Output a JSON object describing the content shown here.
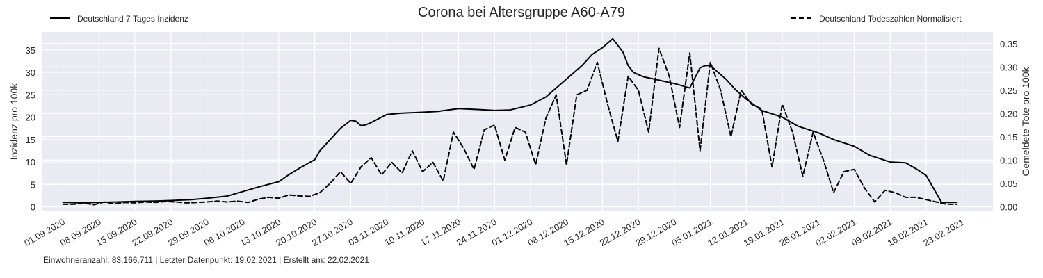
{
  "chart_data": {
    "type": "line",
    "title": "Corona bei Altersgruppe A60-A79",
    "ylabel": "Inzidenz pro 100k",
    "y2label": "Gemeldete Tote pro 100k",
    "xlabel": "",
    "footnote": "Einwohneranzahl: 83,166,711 | Letzter Datenpunkt: 19.02.2021 | Erstellt am: 22.02.2021",
    "x_ticks": [
      "01.09.2020",
      "08.09.2020",
      "15.09.2020",
      "22.09.2020",
      "29.09.2020",
      "06.10.2020",
      "13.10.2020",
      "20.10.2020",
      "27.10.2020",
      "03.11.2020",
      "10.11.2020",
      "17.11.2020",
      "24.11.2020",
      "01.12.2020",
      "08.12.2020",
      "15.12.2020",
      "22.12.2020",
      "29.12.2020",
      "05.01.2021",
      "12.01.2021",
      "19.01.2021",
      "26.01.2021",
      "02.02.2021",
      "09.02.2021",
      "16.02.2021",
      "23.02.2021"
    ],
    "y_ticks": [
      "0",
      "5",
      "10",
      "15",
      "20",
      "25",
      "30",
      "35"
    ],
    "y2_ticks": [
      "0.00",
      "0.05",
      "0.10",
      "0.15",
      "0.20",
      "0.25",
      "0.30",
      "0.35"
    ],
    "xlim": [
      "28.08.2020",
      "01.03.2021"
    ],
    "ylim": [
      -1,
      39
    ],
    "y2lim": [
      -0.01,
      0.375
    ],
    "grid": true,
    "background": "#eaeaf2",
    "line_color": "#000000",
    "legend": [
      {
        "label": "Deutschland 7 Tages Inzidenz",
        "style": "solid",
        "placement": "top-left"
      },
      {
        "label": "Deutschland Todeszahlen Normalisiert",
        "style": "dashed",
        "placement": "top-right"
      }
    ],
    "series": [
      {
        "name": "Deutschland 7 Tages Inzidenz",
        "axis": "left",
        "style": "solid",
        "x": [
          "01.09.2020",
          "05.09.2020",
          "08.09.2020",
          "12.09.2020",
          "15.09.2020",
          "19.09.2020",
          "22.09.2020",
          "26.09.2020",
          "29.09.2020",
          "03.10.2020",
          "06.10.2020",
          "09.10.2020",
          "13.10.2020",
          "15.10.2020",
          "17.10.2020",
          "20.10.2020",
          "21.10.2020",
          "23.10.2020",
          "25.10.2020",
          "27.10.2020",
          "28.10.2020",
          "29.10.2020",
          "30.10.2020",
          "31.10.2020",
          "03.11.2020",
          "06.11.2020",
          "10.11.2020",
          "13.11.2020",
          "17.11.2020",
          "21.11.2020",
          "24.11.2020",
          "27.11.2020",
          "01.12.2020",
          "04.12.2020",
          "08.12.2020",
          "11.12.2020",
          "13.12.2020",
          "15.12.2020",
          "17.12.2020",
          "19.12.2020",
          "20.12.2020",
          "21.12.2020",
          "22.12.2020",
          "23.12.2020",
          "25.12.2020",
          "27.12.2020",
          "29.12.2020",
          "01.01.2021",
          "03.01.2021",
          "04.01.2021",
          "05.01.2021",
          "06.01.2021",
          "08.01.2021",
          "10.01.2021",
          "12.01.2021",
          "15.01.2021",
          "19.01.2021",
          "22.01.2021",
          "26.01.2021",
          "29.01.2021",
          "02.02.2021",
          "05.02.2021",
          "09.02.2021",
          "12.02.2021",
          "14.02.2021",
          "16.02.2021",
          "19.02.2021",
          "22.02.2021"
        ],
        "values": [
          1.0,
          0.9,
          1.0,
          1.1,
          1.2,
          1.3,
          1.4,
          1.6,
          1.9,
          2.4,
          3.4,
          4.4,
          5.6,
          7.2,
          8.6,
          10.5,
          12.5,
          15.0,
          17.5,
          19.3,
          19.1,
          18.1,
          18.3,
          18.8,
          20.6,
          20.9,
          21.1,
          21.3,
          21.9,
          21.7,
          21.5,
          21.6,
          22.7,
          24.5,
          28.5,
          31.5,
          34.0,
          35.5,
          37.5,
          34.5,
          31.5,
          30.0,
          29.5,
          29.0,
          28.5,
          28.0,
          27.5,
          26.5,
          31.0,
          31.5,
          31.5,
          30.5,
          28.5,
          26.0,
          24.0,
          21.5,
          20.0,
          18.0,
          16.5,
          15.0,
          13.5,
          11.5,
          10.0,
          9.8,
          8.5,
          7.0,
          1.0,
          1.0
        ]
      },
      {
        "name": "Deutschland Todeszahlen Normalisiert",
        "axis": "right",
        "style": "dashed",
        "x": [
          "01.09.2020",
          "03.09.2020",
          "05.09.2020",
          "07.09.2020",
          "09.09.2020",
          "11.09.2020",
          "13.09.2020",
          "15.09.2020",
          "17.09.2020",
          "19.09.2020",
          "21.09.2020",
          "23.09.2020",
          "25.09.2020",
          "27.09.2020",
          "29.09.2020",
          "01.10.2020",
          "03.10.2020",
          "05.10.2020",
          "07.10.2020",
          "09.10.2020",
          "11.10.2020",
          "13.10.2020",
          "15.10.2020",
          "17.10.2020",
          "19.10.2020",
          "21.10.2020",
          "23.10.2020",
          "25.10.2020",
          "27.10.2020",
          "29.10.2020",
          "31.10.2020",
          "02.11.2020",
          "04.11.2020",
          "06.11.2020",
          "08.11.2020",
          "10.11.2020",
          "12.11.2020",
          "14.11.2020",
          "16.11.2020",
          "18.11.2020",
          "20.11.2020",
          "22.11.2020",
          "24.11.2020",
          "26.11.2020",
          "28.11.2020",
          "30.11.2020",
          "02.12.2020",
          "04.12.2020",
          "06.12.2020",
          "08.12.2020",
          "10.12.2020",
          "12.12.2020",
          "14.12.2020",
          "16.12.2020",
          "18.12.2020",
          "20.12.2020",
          "22.12.2020",
          "24.12.2020",
          "26.12.2020",
          "28.12.2020",
          "30.12.2020",
          "01.01.2021",
          "03.01.2021",
          "05.01.2021",
          "07.01.2021",
          "09.01.2021",
          "11.01.2021",
          "13.01.2021",
          "15.01.2021",
          "17.01.2021",
          "19.01.2021",
          "21.01.2021",
          "23.01.2021",
          "25.01.2021",
          "27.01.2021",
          "29.01.2021",
          "31.01.2021",
          "02.02.2021",
          "04.02.2021",
          "06.02.2021",
          "08.02.2021",
          "10.02.2021",
          "12.02.2021",
          "14.02.2021",
          "16.02.2021",
          "18.02.2021",
          "20.02.2021",
          "22.02.2021"
        ],
        "values": [
          0.005,
          0.005,
          0.008,
          0.004,
          0.01,
          0.006,
          0.009,
          0.008,
          0.01,
          0.009,
          0.011,
          0.01,
          0.008,
          0.009,
          0.01,
          0.012,
          0.01,
          0.012,
          0.009,
          0.016,
          0.02,
          0.018,
          0.025,
          0.023,
          0.022,
          0.03,
          0.05,
          0.075,
          0.05,
          0.085,
          0.105,
          0.068,
          0.095,
          0.072,
          0.12,
          0.075,
          0.095,
          0.055,
          0.16,
          0.125,
          0.08,
          0.165,
          0.175,
          0.1,
          0.17,
          0.16,
          0.09,
          0.19,
          0.24,
          0.09,
          0.24,
          0.25,
          0.31,
          0.22,
          0.14,
          0.28,
          0.25,
          0.16,
          0.34,
          0.28,
          0.17,
          0.33,
          0.12,
          0.31,
          0.25,
          0.15,
          0.25,
          0.22,
          0.21,
          0.085,
          0.22,
          0.16,
          0.065,
          0.16,
          0.1,
          0.03,
          0.075,
          0.08,
          0.04,
          0.01,
          0.035,
          0.03,
          0.02,
          0.02,
          0.015,
          0.01,
          0.005,
          0.005
        ]
      }
    ]
  }
}
